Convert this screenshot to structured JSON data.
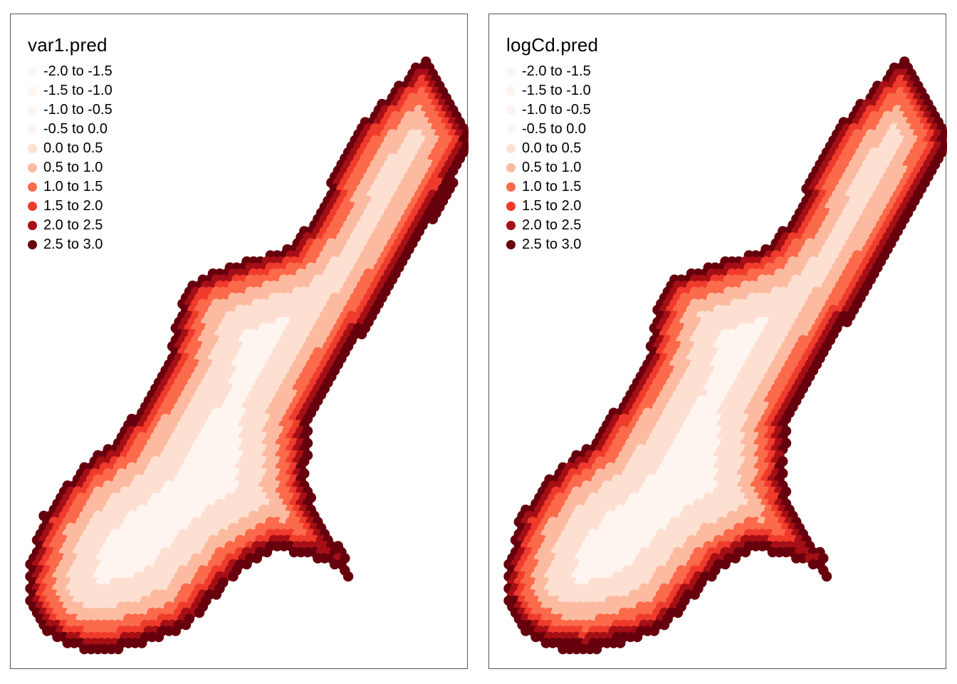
{
  "classes": [
    {
      "label": "-2.0 to -1.5",
      "color": "#fff5f0"
    },
    {
      "label": "-1.5 to -1.0",
      "color": "#fff5f0"
    },
    {
      "label": "-1.0 to -0.5",
      "color": "#fff5f0"
    },
    {
      "label": "-0.5 to 0.0",
      "color": "#fff5f0"
    },
    {
      "label": "0.0 to 0.5",
      "color": "#fee0d2"
    },
    {
      "label": "0.5 to 1.0",
      "color": "#fcbba1"
    },
    {
      "label": "1.0 to 1.5",
      "color": "#fb6a4a"
    },
    {
      "label": "1.5 to 2.0",
      "color": "#ef3b2c"
    },
    {
      "label": "2.0 to 2.5",
      "color": "#a50f15"
    },
    {
      "label": "2.5 to 3.0",
      "color": "#67000d"
    }
  ],
  "panels": [
    {
      "title": "var1.pred"
    },
    {
      "title": "logCd.pred"
    }
  ]
}
